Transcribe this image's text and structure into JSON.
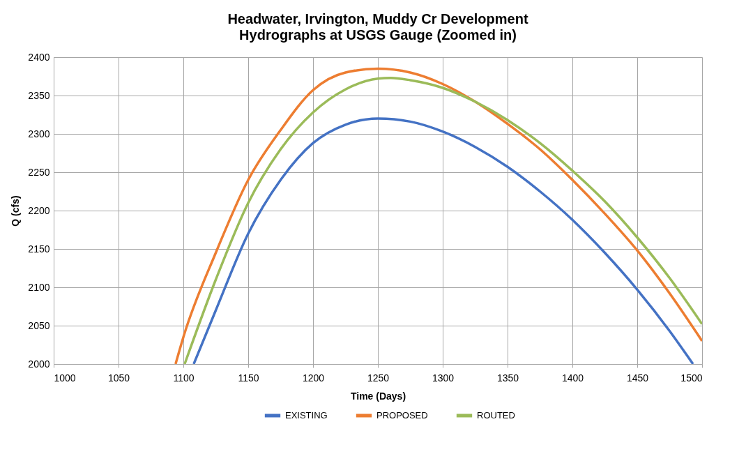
{
  "chart_data": {
    "type": "line",
    "title": "Headwater, Irvington, Muddy Cr Development",
    "subtitle": "Hydrographs at USGS Gauge (Zoomed in)",
    "xlabel": "Time (Days)",
    "ylabel": "Q (cfs)",
    "xlim": [
      1000,
      1500
    ],
    "xticks": [
      1000,
      1050,
      1100,
      1150,
      1200,
      1250,
      1300,
      1350,
      1400,
      1450,
      1500
    ],
    "ylim": [
      2000,
      2400
    ],
    "yticks": [
      2000,
      2050,
      2100,
      2150,
      2200,
      2250,
      2300,
      2350,
      2400
    ],
    "grid": true,
    "legend": "bottom",
    "marker": "none",
    "line_style": "solid",
    "series": [
      {
        "name": "EXISTING",
        "color": "#4472c4",
        "x": [
          1108,
          1125,
          1150,
          1175,
          1200,
          1225,
          1250,
          1275,
          1300,
          1325,
          1350,
          1375,
          1400,
          1425,
          1450,
          1475,
          1493
        ],
        "values": [
          2000,
          2070,
          2170,
          2240,
          2288,
          2312,
          2320,
          2316,
          2303,
          2283,
          2257,
          2225,
          2188,
          2145,
          2097,
          2043,
          2000
        ]
      },
      {
        "name": "PROPOSED",
        "color": "#ed7d31",
        "x": [
          1094,
          1100,
          1125,
          1150,
          1175,
          1200,
          1225,
          1250,
          1275,
          1300,
          1325,
          1350,
          1375,
          1400,
          1425,
          1450,
          1475,
          1500
        ],
        "values": [
          2000,
          2035,
          2145,
          2240,
          2305,
          2357,
          2380,
          2385,
          2380,
          2365,
          2342,
          2313,
          2280,
          2240,
          2196,
          2148,
          2092,
          2030
        ]
      },
      {
        "name": "ROUTED",
        "color": "#9bbb59",
        "x": [
          1101,
          1125,
          1150,
          1175,
          1200,
          1225,
          1250,
          1260,
          1275,
          1300,
          1325,
          1350,
          1375,
          1400,
          1425,
          1450,
          1475,
          1500
        ],
        "values": [
          2000,
          2110,
          2210,
          2280,
          2328,
          2358,
          2372,
          2373,
          2370,
          2360,
          2342,
          2318,
          2288,
          2252,
          2212,
          2165,
          2112,
          2052
        ]
      }
    ]
  }
}
